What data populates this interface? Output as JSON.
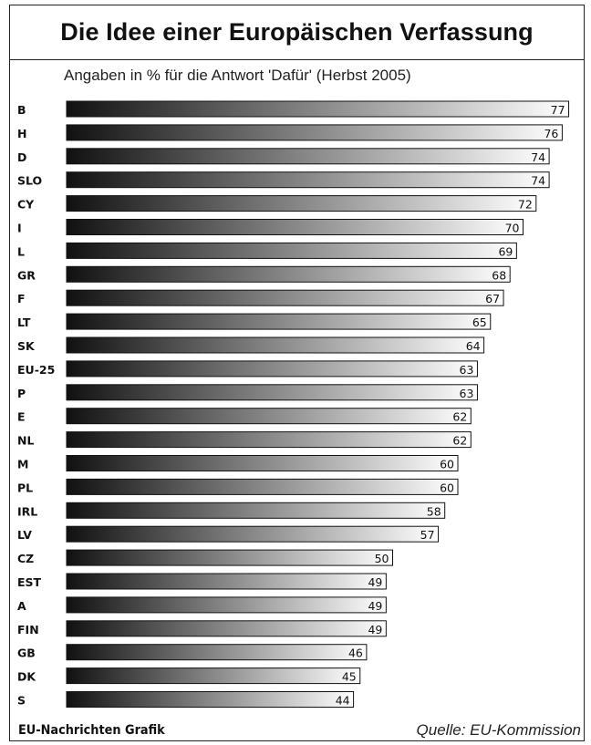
{
  "chart_data": {
    "type": "bar",
    "orientation": "horizontal",
    "title": "Die Idee einer Europäischen Verfassung",
    "subtitle": "Angaben in % für die Antwort 'Dafür' (Herbst 2005)",
    "categories": [
      "B",
      "H",
      "D",
      "SLO",
      "CY",
      "I",
      "L",
      "GR",
      "F",
      "LT",
      "SK",
      "EU-25",
      "P",
      "E",
      "NL",
      "M",
      "PL",
      "IRL",
      "LV",
      "CZ",
      "EST",
      "A",
      "FIN",
      "GB",
      "DK",
      "S"
    ],
    "values": [
      77,
      76,
      74,
      74,
      72,
      70,
      69,
      68,
      67,
      65,
      64,
      63,
      63,
      62,
      62,
      60,
      60,
      58,
      57,
      50,
      49,
      49,
      49,
      46,
      45,
      44
    ],
    "unit": "%",
    "bar_gradient": [
      "#111111",
      "#ffffff"
    ]
  },
  "footer": {
    "source_left": "EU-Nachrichten Grafik",
    "source_right": "Quelle: EU-Kommission"
  }
}
